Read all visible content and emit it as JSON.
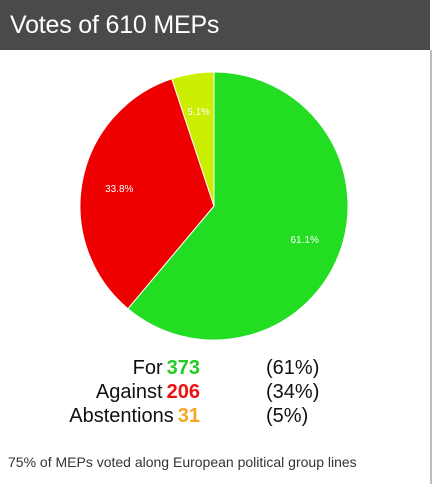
{
  "header": {
    "title": "Votes of 610 MEPs"
  },
  "chart_data": {
    "type": "pie",
    "title": "Votes of 610 MEPs",
    "slices": [
      {
        "label": "For",
        "value": 61.1,
        "display": "61.1%",
        "color": "#22dd22"
      },
      {
        "label": "Against",
        "value": 33.8,
        "display": "33.8%",
        "color": "#ee0000"
      },
      {
        "label": "Abstentions",
        "value": 5.1,
        "display": "5.1%",
        "color": "#ccee00"
      }
    ],
    "start_angle_deg": 0,
    "slice_border_color": "#ffffff"
  },
  "tally": {
    "rows": [
      {
        "label": "For",
        "count": "373",
        "pct": "(61%)",
        "count_color": "#22cc22"
      },
      {
        "label": "Against",
        "count": "206",
        "pct": "(34%)",
        "count_color": "#ee1111"
      },
      {
        "label": "Abstentions",
        "count": "31",
        "pct": "(5%)",
        "count_color": "#f5a623"
      }
    ]
  },
  "footer": {
    "text": "75% of MEPs voted along European political group lines"
  }
}
